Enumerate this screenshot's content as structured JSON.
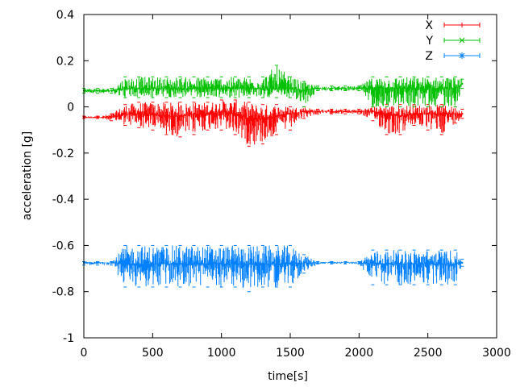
{
  "chart_data": {
    "type": "line",
    "title": "",
    "xlabel": "time[s]",
    "ylabel": "acceleration [g]",
    "xlim": [
      0,
      3000
    ],
    "ylim": [
      -1,
      0.4
    ],
    "xticks": [
      0,
      500,
      1000,
      1500,
      2000,
      2500,
      3000
    ],
    "xtick_labels": [
      "0",
      "500",
      "1000",
      "1500",
      "2000",
      "2500",
      "3000"
    ],
    "yticks": [
      0.4,
      0.2,
      0,
      -0.2,
      -0.4,
      -0.6,
      -0.8,
      -1
    ],
    "ytick_labels": [
      "0.4",
      "0.2",
      "0",
      "-0.2",
      "-0.4",
      "-0.6",
      "-0.8",
      "-1"
    ],
    "grid": false,
    "legend_position": "top-right",
    "error_bars": true,
    "x": [
      0,
      100,
      200,
      300,
      400,
      500,
      600,
      700,
      800,
      900,
      1000,
      1100,
      1200,
      1300,
      1400,
      1500,
      1600,
      1700,
      1800,
      1900,
      2000,
      2100,
      2200,
      2300,
      2400,
      2500,
      2600,
      2700,
      2750
    ],
    "series": [
      {
        "name": "X",
        "color": "#ff0000",
        "marker": "+",
        "values": [
          -0.045,
          -0.045,
          -0.045,
          -0.03,
          -0.03,
          -0.03,
          -0.04,
          -0.04,
          -0.03,
          -0.03,
          -0.02,
          -0.03,
          -0.05,
          -0.05,
          -0.04,
          -0.03,
          -0.02,
          -0.02,
          -0.02,
          -0.02,
          -0.02,
          -0.02,
          -0.03,
          -0.04,
          -0.03,
          -0.03,
          -0.03,
          -0.03,
          -0.03
        ],
        "low": [
          -0.05,
          -0.05,
          -0.06,
          -0.08,
          -0.09,
          -0.1,
          -0.12,
          -0.13,
          -0.12,
          -0.1,
          -0.1,
          -0.12,
          -0.17,
          -0.16,
          -0.12,
          -0.1,
          -0.05,
          -0.03,
          -0.03,
          -0.03,
          -0.03,
          -0.06,
          -0.12,
          -0.12,
          -0.08,
          -0.1,
          -0.12,
          -0.07,
          -0.05
        ],
        "high": [
          -0.04,
          -0.04,
          -0.03,
          0.01,
          0.02,
          0.02,
          0.02,
          0.02,
          0.02,
          0.02,
          0.03,
          0.03,
          0.02,
          0.01,
          0.01,
          0.0,
          0.0,
          -0.01,
          -0.01,
          -0.01,
          -0.01,
          0.0,
          0.01,
          0.01,
          0.01,
          0.01,
          0.01,
          0.0,
          -0.01
        ]
      },
      {
        "name": "Y",
        "color": "#00c000",
        "marker": "x",
        "values": [
          0.07,
          0.07,
          0.07,
          0.08,
          0.08,
          0.08,
          0.08,
          0.08,
          0.08,
          0.08,
          0.08,
          0.08,
          0.08,
          0.08,
          0.08,
          0.08,
          0.07,
          0.08,
          0.08,
          0.08,
          0.08,
          0.08,
          0.08,
          0.08,
          0.08,
          0.08,
          0.08,
          0.08,
          0.1
        ],
        "low": [
          0.06,
          0.06,
          0.06,
          0.04,
          0.04,
          0.04,
          0.04,
          0.04,
          0.04,
          0.04,
          0.04,
          0.04,
          0.04,
          0.04,
          0.04,
          0.04,
          0.0,
          0.07,
          0.07,
          0.07,
          0.07,
          0.0,
          0.0,
          0.0,
          0.0,
          0.0,
          0.0,
          0.0,
          0.08
        ],
        "high": [
          0.08,
          0.08,
          0.08,
          0.13,
          0.13,
          0.13,
          0.13,
          0.13,
          0.13,
          0.13,
          0.13,
          0.13,
          0.13,
          0.13,
          0.18,
          0.13,
          0.11,
          0.09,
          0.09,
          0.09,
          0.09,
          0.13,
          0.13,
          0.13,
          0.13,
          0.13,
          0.13,
          0.13,
          0.12
        ]
      },
      {
        "name": "Z",
        "color": "#0080ff",
        "marker": "*",
        "values": [
          -0.675,
          -0.675,
          -0.675,
          -0.68,
          -0.68,
          -0.68,
          -0.68,
          -0.68,
          -0.68,
          -0.68,
          -0.68,
          -0.68,
          -0.68,
          -0.68,
          -0.68,
          -0.68,
          -0.675,
          -0.675,
          -0.675,
          -0.675,
          -0.675,
          -0.68,
          -0.68,
          -0.68,
          -0.68,
          -0.68,
          -0.68,
          -0.68,
          -0.675
        ],
        "low": [
          -0.685,
          -0.685,
          -0.685,
          -0.78,
          -0.78,
          -0.78,
          -0.78,
          -0.78,
          -0.78,
          -0.78,
          -0.78,
          -0.78,
          -0.8,
          -0.78,
          -0.78,
          -0.78,
          -0.72,
          -0.68,
          -0.68,
          -0.68,
          -0.68,
          -0.77,
          -0.77,
          -0.77,
          -0.77,
          -0.77,
          -0.77,
          -0.77,
          -0.69
        ],
        "high": [
          -0.67,
          -0.67,
          -0.67,
          -0.6,
          -0.6,
          -0.6,
          -0.6,
          -0.6,
          -0.6,
          -0.6,
          -0.6,
          -0.6,
          -0.6,
          -0.6,
          -0.6,
          -0.6,
          -0.64,
          -0.67,
          -0.67,
          -0.67,
          -0.67,
          -0.62,
          -0.62,
          -0.62,
          -0.62,
          -0.62,
          -0.62,
          -0.62,
          -0.66
        ]
      }
    ]
  }
}
